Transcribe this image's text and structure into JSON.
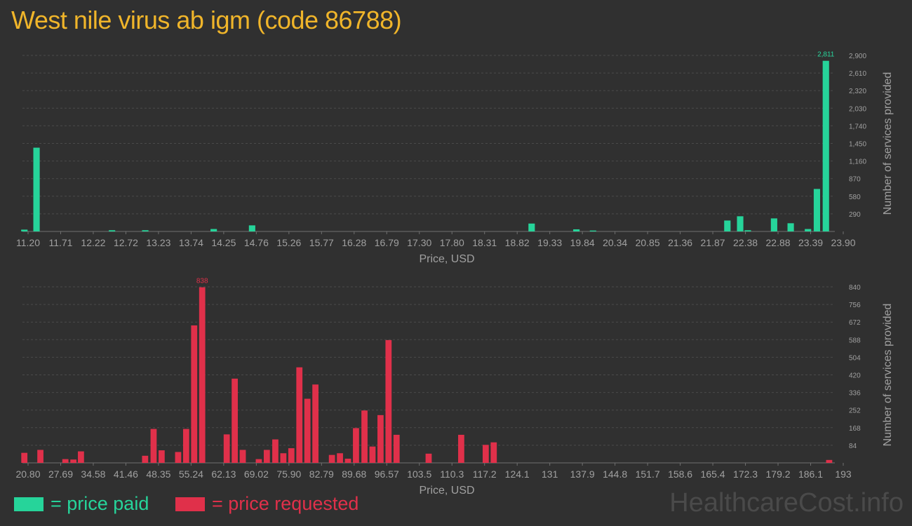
{
  "title": "West nile virus ab igm (code 86788)",
  "legend": {
    "paid": "= price paid",
    "requested": "= price requested"
  },
  "brand": "HealthcareCost.info",
  "colors": {
    "paid": "#26d49a",
    "requested": "#e0304a",
    "title": "#f0b52a",
    "axis": "#a0a0a0"
  },
  "chart_data": [
    {
      "type": "bar",
      "xlabel": "Price, USD",
      "ylabel": "Number of services provided",
      "x_tick_labels": [
        "11.20",
        "11.71",
        "12.22",
        "12.72",
        "13.23",
        "13.74",
        "14.25",
        "14.76",
        "15.26",
        "15.77",
        "16.28",
        "16.79",
        "17.30",
        "17.80",
        "18.31",
        "18.82",
        "19.33",
        "19.84",
        "20.34",
        "20.85",
        "21.36",
        "21.87",
        "22.38",
        "22.88",
        "23.39",
        "23.90"
      ],
      "y_ticks": [
        "290",
        "580",
        "870",
        "1,160",
        "1,450",
        "1,740",
        "2,030",
        "2,320",
        "2,610",
        "2,900"
      ],
      "max_label": "2,811",
      "xlim": [
        11.2,
        23.9
      ],
      "ylim": [
        0,
        2900
      ],
      "bar_width": 0.1,
      "series": [
        {
          "points": [
            {
              "x": 11.23,
              "y": 30
            },
            {
              "x": 11.42,
              "y": 1380
            },
            {
              "x": 12.6,
              "y": 20
            },
            {
              "x": 13.12,
              "y": 20
            },
            {
              "x": 14.19,
              "y": 40
            },
            {
              "x": 14.79,
              "y": 100
            },
            {
              "x": 19.16,
              "y": 130
            },
            {
              "x": 19.86,
              "y": 35
            },
            {
              "x": 20.12,
              "y": 15
            },
            {
              "x": 22.22,
              "y": 180
            },
            {
              "x": 22.42,
              "y": 250
            },
            {
              "x": 22.54,
              "y": 20
            },
            {
              "x": 22.95,
              "y": 215
            },
            {
              "x": 23.21,
              "y": 135
            },
            {
              "x": 23.48,
              "y": 40
            },
            {
              "x": 23.62,
              "y": 700
            },
            {
              "x": 23.76,
              "y": 2811
            }
          ]
        }
      ]
    },
    {
      "type": "bar",
      "xlabel": "Price, USD",
      "ylabel": "Number of services provided",
      "x_tick_labels": [
        "20.80",
        "27.69",
        "34.58",
        "41.46",
        "48.35",
        "55.24",
        "62.13",
        "69.02",
        "75.90",
        "82.79",
        "89.68",
        "96.57",
        "103.5",
        "110.3",
        "117.2",
        "124.1",
        "131",
        "137.9",
        "144.8",
        "151.7",
        "158.6",
        "165.4",
        "172.3",
        "179.2",
        "186.1",
        "193"
      ],
      "y_ticks": [
        "84",
        "168",
        "252",
        "336",
        "420",
        "504",
        "588",
        "672",
        "756",
        "840"
      ],
      "max_label": "838",
      "xlim": [
        20.8,
        193
      ],
      "ylim": [
        0,
        840
      ],
      "bar_width": 1.3,
      "series": [
        {
          "points": [
            {
              "x": 21.2,
              "y": 48
            },
            {
              "x": 24.6,
              "y": 62
            },
            {
              "x": 29.9,
              "y": 18
            },
            {
              "x": 31.6,
              "y": 16
            },
            {
              "x": 33.2,
              "y": 55
            },
            {
              "x": 46.8,
              "y": 34
            },
            {
              "x": 48.6,
              "y": 162
            },
            {
              "x": 50.3,
              "y": 60
            },
            {
              "x": 53.8,
              "y": 52
            },
            {
              "x": 55.5,
              "y": 162
            },
            {
              "x": 57.2,
              "y": 656
            },
            {
              "x": 58.9,
              "y": 838
            },
            {
              "x": 64.1,
              "y": 136
            },
            {
              "x": 65.8,
              "y": 402
            },
            {
              "x": 67.5,
              "y": 62
            },
            {
              "x": 70.9,
              "y": 18
            },
            {
              "x": 72.6,
              "y": 62
            },
            {
              "x": 74.4,
              "y": 112
            },
            {
              "x": 76.1,
              "y": 46
            },
            {
              "x": 77.8,
              "y": 70
            },
            {
              "x": 79.5,
              "y": 456
            },
            {
              "x": 81.2,
              "y": 306
            },
            {
              "x": 82.9,
              "y": 374
            },
            {
              "x": 86.4,
              "y": 38
            },
            {
              "x": 88.1,
              "y": 46
            },
            {
              "x": 89.8,
              "y": 20
            },
            {
              "x": 91.5,
              "y": 166
            },
            {
              "x": 93.3,
              "y": 250
            },
            {
              "x": 95.0,
              "y": 78
            },
            {
              "x": 96.7,
              "y": 228
            },
            {
              "x": 98.4,
              "y": 586
            },
            {
              "x": 100.1,
              "y": 134
            },
            {
              "x": 106.9,
              "y": 44
            },
            {
              "x": 113.8,
              "y": 134
            },
            {
              "x": 119.0,
              "y": 86
            },
            {
              "x": 120.7,
              "y": 98
            },
            {
              "x": 191.8,
              "y": 14
            }
          ]
        }
      ]
    }
  ]
}
